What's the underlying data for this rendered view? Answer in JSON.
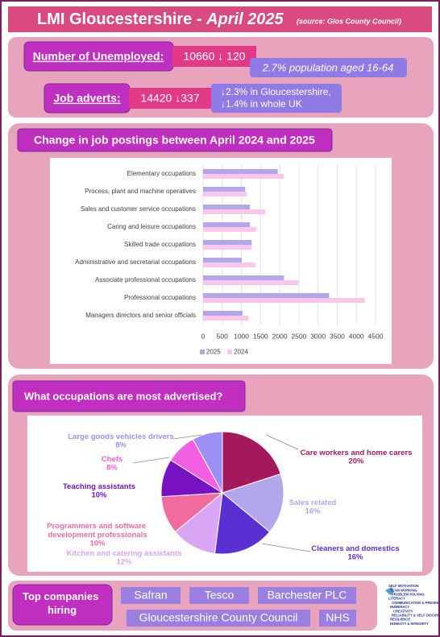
{
  "header": {
    "title": "LMI Gloucestershire -",
    "date": "April 2025",
    "source": "(source: Glos County Council)"
  },
  "stats": {
    "unemployed": {
      "label": "Number of Unemployed:",
      "value": "10660 ↓ 120",
      "note": "2.7% population aged 16-64"
    },
    "job_adverts": {
      "label": "Job adverts:",
      "value": "14420 ↓337",
      "note": [
        "↓2.3% in Gloucestershire,",
        "↓1.4% in whole UK"
      ]
    }
  },
  "chart_data": [
    {
      "type": "bar",
      "orientation": "horizontal",
      "title": "Change in job postings between April 2024 and 2025",
      "categories": [
        "Elementary occupations",
        "Process, plant and machine operatives",
        "Sales and customer service occupations",
        "Caring and leisure occupations",
        "Skilled trade occupations",
        "Administrative and secretarial occupations",
        "Associate professional occupations",
        "Professional occupations",
        "Managers directors and senior officials"
      ],
      "series": [
        {
          "name": "2025",
          "color": "#b4a7e8",
          "values": [
            1950,
            1100,
            1220,
            1220,
            1270,
            1010,
            2110,
            3290,
            1030
          ]
        },
        {
          "name": "2024",
          "color": "#f9c6ec",
          "values": [
            2110,
            1140,
            1620,
            1390,
            1270,
            1370,
            2490,
            4220,
            1180
          ]
        }
      ],
      "xlim": [
        0,
        4500
      ],
      "xticks": [
        0,
        500,
        1000,
        1500,
        2000,
        2500,
        3000,
        3500,
        4000,
        4500
      ],
      "grid": true,
      "legend": "bottom"
    },
    {
      "type": "pie",
      "title": "What occupations are most advertised?",
      "categories": [
        "Care workers and home carers",
        "Sales related",
        "Cleaners and domestics",
        "Kitchen and catering assistants",
        "Programmers and software development professionals",
        "Teaching assistants",
        "Chefs",
        "Large goods vehicles drivers"
      ],
      "values": [
        20,
        16,
        16,
        12,
        10,
        10,
        8,
        8
      ],
      "value_labels": [
        "20%",
        "16%",
        "16%",
        "12%",
        "10%",
        "10%",
        "8%",
        "8%"
      ],
      "colors": [
        "#a3195c",
        "#b3a6ea",
        "#5a30d2",
        "#d8a6f4",
        "#f26b9e",
        "#7811c2",
        "#f25fe2",
        "#9c90f5"
      ]
    }
  ],
  "companies": {
    "title": "Top companies hiring",
    "names": [
      "Safran",
      "Tesco",
      "Barchester PLC",
      "Gloucestershire County Council",
      "NHS"
    ]
  },
  "skills": [
    "SELF MOTIVATION",
    "TEAM WORKING",
    "PROBLEM SOLVING",
    "LITERACY",
    "COMMUNICATION & PRESENTATION",
    "NUMERACY",
    "CREATIVITY",
    "RELIABILITY & SELF DISCIPLINE",
    "RESILIENCE",
    "HONESTY & INTEGRITY"
  ]
}
